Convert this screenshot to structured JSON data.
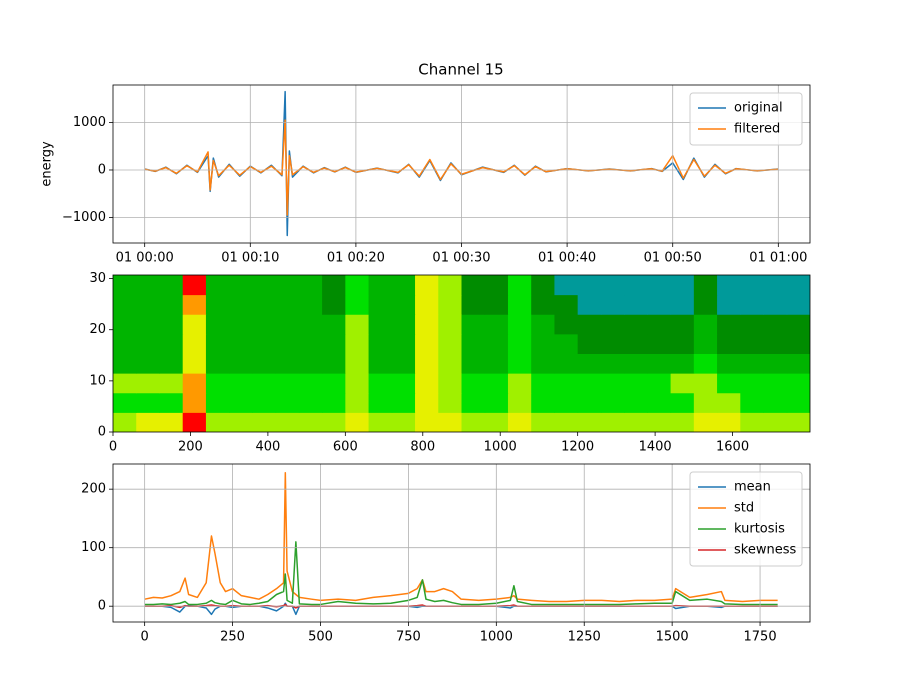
{
  "chart_data": [
    {
      "type": "line",
      "title": "Channel 15",
      "ylabel": "energy",
      "x": [
        0,
        1,
        2,
        3,
        4,
        5,
        6,
        6.2,
        6.5,
        7,
        8,
        9,
        10,
        11,
        12,
        13,
        13.3,
        13.5,
        13.7,
        14,
        15,
        16,
        17,
        18,
        19,
        20,
        22,
        24,
        25,
        26,
        27,
        28,
        29,
        30,
        32,
        34,
        35,
        36,
        37,
        38,
        40,
        42,
        44,
        46,
        48,
        49,
        50,
        51,
        52,
        53,
        54,
        55,
        56,
        58,
        60
      ],
      "series": [
        {
          "name": "original",
          "color": "#1f77b4",
          "values": [
            20,
            -30,
            60,
            -80,
            100,
            -50,
            300,
            -450,
            250,
            -150,
            120,
            -130,
            80,
            -60,
            100,
            -120,
            1650,
            -1380,
            400,
            -150,
            80,
            -60,
            50,
            -40,
            60,
            -50,
            40,
            -60,
            120,
            -150,
            200,
            -220,
            150,
            -100,
            60,
            -50,
            100,
            -110,
            80,
            -40,
            30,
            -20,
            20,
            -20,
            30,
            -30,
            150,
            -200,
            250,
            -150,
            120,
            -80,
            30,
            -20,
            20
          ]
        },
        {
          "name": "filtered",
          "color": "#ff7f0e",
          "values": [
            15,
            -25,
            50,
            -70,
            90,
            -40,
            380,
            -420,
            200,
            -120,
            100,
            -110,
            70,
            -50,
            80,
            -100,
            1050,
            -950,
            300,
            -100,
            70,
            -50,
            40,
            -35,
            50,
            -45,
            35,
            -50,
            110,
            -130,
            220,
            -200,
            130,
            -90,
            50,
            -40,
            90,
            -100,
            70,
            -35,
            25,
            -15,
            15,
            -15,
            25,
            -25,
            300,
            -170,
            220,
            -130,
            100,
            -70,
            25,
            -15,
            15
          ]
        }
      ],
      "xlim": [
        -3,
        63
      ],
      "ylim": [
        -1537,
        1789
      ],
      "xticks": [
        {
          "value": 0,
          "label": "01 00:00"
        },
        {
          "value": 10,
          "label": "01 00:10"
        },
        {
          "value": 20,
          "label": "01 00:20"
        },
        {
          "value": 30,
          "label": "01 00:30"
        },
        {
          "value": 40,
          "label": "01 00:40"
        },
        {
          "value": 50,
          "label": "01 00:50"
        },
        {
          "value": 60,
          "label": "01 01:00"
        }
      ],
      "yticks": [
        {
          "value": -1000,
          "label": "−1000"
        },
        0,
        1000
      ],
      "grid": true,
      "legend": "upper right"
    },
    {
      "type": "heatmap",
      "z": [
        [
          5,
          6,
          6,
          8,
          5,
          5,
          5,
          5,
          5,
          5,
          6,
          5,
          5,
          6,
          6,
          5,
          5,
          6,
          5,
          5,
          5,
          5,
          5,
          5,
          5,
          6,
          6,
          5,
          5,
          5
        ],
        [
          4,
          4,
          4,
          7,
          4,
          4,
          4,
          4,
          4,
          4,
          5,
          4,
          4,
          6,
          5,
          4,
          4,
          5,
          4,
          4,
          4,
          4,
          4,
          4,
          4,
          5,
          5,
          4,
          4,
          4
        ],
        [
          5,
          5,
          5,
          7,
          4,
          4,
          4,
          4,
          4,
          4,
          5,
          4,
          4,
          6,
          5,
          4,
          4,
          5,
          4,
          4,
          4,
          4,
          4,
          4,
          5,
          5,
          4,
          4,
          4,
          4
        ],
        [
          3,
          3,
          3,
          6,
          3,
          3,
          3,
          3,
          3,
          3,
          5,
          3,
          3,
          6,
          5,
          3,
          3,
          4,
          3,
          3,
          3,
          3,
          3,
          3,
          3,
          4,
          3,
          3,
          3,
          3
        ],
        [
          3,
          3,
          3,
          6,
          3,
          3,
          3,
          3,
          3,
          3,
          5,
          3,
          3,
          6,
          5,
          3,
          3,
          4,
          3,
          3,
          2,
          2,
          2,
          2,
          2,
          3,
          2,
          2,
          2,
          2
        ],
        [
          3,
          3,
          3,
          6,
          3,
          3,
          3,
          3,
          3,
          3,
          5,
          3,
          3,
          6,
          5,
          3,
          3,
          4,
          3,
          2,
          2,
          2,
          2,
          2,
          2,
          3,
          2,
          2,
          2,
          2
        ],
        [
          3,
          3,
          3,
          7,
          3,
          3,
          3,
          3,
          3,
          2,
          4,
          3,
          3,
          6,
          5,
          2,
          2,
          4,
          2,
          2,
          1,
          1,
          1,
          1,
          1,
          2,
          1,
          1,
          1,
          1
        ],
        [
          3,
          3,
          3,
          8,
          3,
          3,
          3,
          3,
          3,
          2,
          4,
          3,
          3,
          6,
          5,
          2,
          2,
          4,
          2,
          1,
          1,
          1,
          1,
          1,
          1,
          2,
          1,
          1,
          1,
          1
        ]
      ],
      "colors": [
        "#009a9a",
        "#008c00",
        "#00b400",
        "#00e000",
        "#a0f000",
        "#e6f000",
        "#ff9900",
        "#ff0000"
      ],
      "clim": [
        1,
        8
      ],
      "xlim": [
        0,
        1800
      ],
      "ylim": [
        0,
        30.7
      ],
      "xticks": [
        0,
        200,
        400,
        600,
        800,
        1000,
        1200,
        1400,
        1600
      ],
      "yticks": [
        0,
        10,
        20,
        30
      ]
    },
    {
      "type": "line",
      "x": [
        0,
        25,
        50,
        75,
        100,
        115,
        125,
        150,
        175,
        190,
        200,
        215,
        230,
        250,
        275,
        300,
        325,
        350,
        375,
        395,
        400,
        405,
        420,
        430,
        440,
        475,
        500,
        550,
        600,
        650,
        700,
        750,
        775,
        790,
        800,
        825,
        850,
        875,
        900,
        950,
        1000,
        1040,
        1050,
        1060,
        1100,
        1150,
        1200,
        1250,
        1300,
        1350,
        1400,
        1450,
        1500,
        1510,
        1550,
        1600,
        1640,
        1650,
        1700,
        1750,
        1800
      ],
      "series": [
        {
          "name": "mean",
          "color": "#1f77b4",
          "values": [
            0,
            0,
            0,
            -2,
            -10,
            0,
            1,
            0,
            -3,
            -14,
            -5,
            0,
            0,
            -2,
            0,
            0,
            0,
            -3,
            -8,
            0,
            5,
            0,
            0,
            -14,
            0,
            0,
            0,
            0,
            0,
            0,
            0,
            0,
            -2,
            0,
            0,
            0,
            0,
            0,
            0,
            0,
            0,
            -3,
            0,
            0,
            0,
            0,
            0,
            0,
            0,
            0,
            0,
            0,
            0,
            -4,
            0,
            0,
            -2,
            0,
            0,
            0,
            0
          ]
        },
        {
          "name": "std",
          "color": "#ff7f0e",
          "values": [
            12,
            15,
            14,
            18,
            25,
            48,
            20,
            15,
            40,
            120,
            90,
            40,
            25,
            30,
            18,
            15,
            12,
            20,
            30,
            40,
            228,
            60,
            25,
            20,
            15,
            12,
            10,
            12,
            10,
            15,
            18,
            22,
            30,
            45,
            25,
            25,
            30,
            25,
            12,
            10,
            12,
            15,
            18,
            12,
            10,
            8,
            8,
            10,
            10,
            8,
            10,
            10,
            12,
            30,
            15,
            20,
            25,
            10,
            8,
            10,
            10
          ]
        },
        {
          "name": "kurtosis",
          "color": "#2ca02c",
          "values": [
            3,
            3,
            4,
            3,
            5,
            8,
            3,
            3,
            5,
            10,
            6,
            4,
            3,
            10,
            4,
            3,
            5,
            8,
            20,
            25,
            55,
            10,
            5,
            110,
            4,
            3,
            3,
            8,
            5,
            4,
            5,
            10,
            15,
            45,
            12,
            8,
            10,
            6,
            3,
            3,
            5,
            10,
            35,
            8,
            3,
            3,
            3,
            3,
            3,
            3,
            4,
            5,
            5,
            25,
            10,
            12,
            8,
            4,
            3,
            3,
            3
          ]
        },
        {
          "name": "skewness",
          "color": "#d62728",
          "values": [
            0,
            0,
            0,
            1,
            -2,
            1,
            0,
            0,
            1,
            2,
            1,
            0,
            0,
            1,
            0,
            0,
            0,
            1,
            -1,
            1,
            3,
            0,
            0,
            -3,
            0,
            0,
            0,
            0,
            0,
            0,
            0,
            0,
            1,
            2,
            0,
            0,
            0,
            0,
            0,
            0,
            0,
            1,
            2,
            0,
            0,
            0,
            0,
            0,
            0,
            0,
            0,
            0,
            0,
            1,
            0,
            0,
            0,
            0,
            0,
            0,
            0
          ]
        }
      ],
      "xlim": [
        -90,
        1892
      ],
      "ylim": [
        -27,
        243
      ],
      "xticks": [
        0,
        250,
        500,
        750,
        1000,
        1250,
        1500,
        1750
      ],
      "yticks": [
        0,
        100,
        200
      ],
      "grid": true,
      "legend": "upper right"
    }
  ]
}
